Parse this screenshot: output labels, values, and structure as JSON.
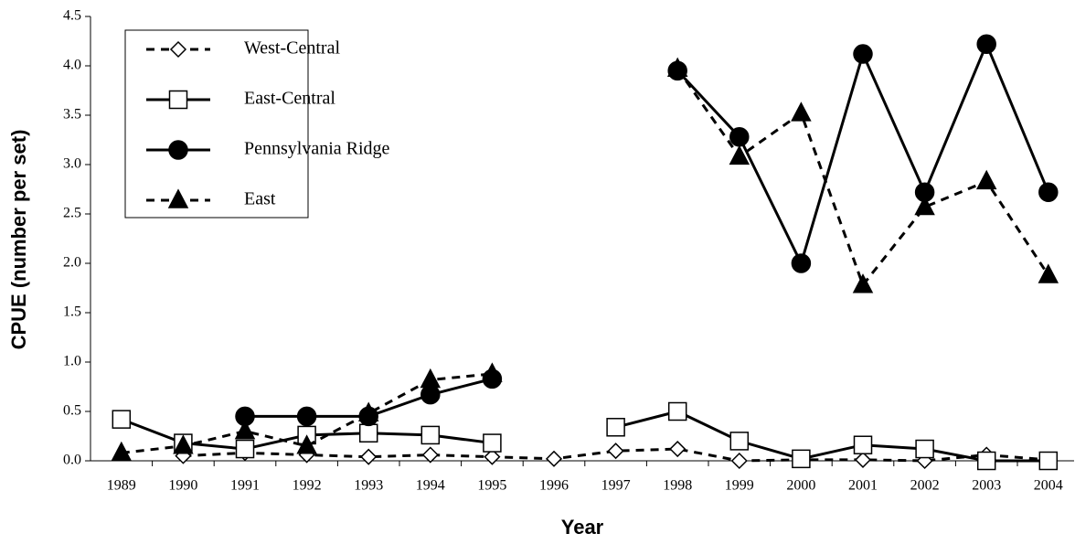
{
  "chart_data": {
    "type": "line",
    "x_label": "Year",
    "y_label": "CPUE (number per set)",
    "categories": [
      "1989",
      "1990",
      "1991",
      "1992",
      "1993",
      "1994",
      "1995",
      "1996",
      "1997",
      "1998",
      "1999",
      "2000",
      "2001",
      "2002",
      "2003",
      "2004"
    ],
    "ylim": [
      0,
      4.5
    ],
    "yticks": [
      {
        "value": 0,
        "label": "0.0"
      },
      0.5,
      {
        "value": 1,
        "label": "1.0"
      },
      1.5,
      {
        "value": 2,
        "label": "2.0"
      },
      2.5,
      {
        "value": 3,
        "label": "3.0"
      },
      3.5,
      {
        "value": 4,
        "label": "4.0"
      },
      4.5
    ],
    "series": [
      {
        "name": "West-Central",
        "color": "#000000",
        "dash": true,
        "marker": "diamond",
        "values": [
          null,
          0.05,
          0.08,
          0.06,
          0.04,
          0.06,
          0.04,
          0.02,
          0.1,
          0.12,
          0.0,
          0.01,
          0.01,
          0.0,
          0.06,
          0.01
        ]
      },
      {
        "name": "East-Central",
        "color": "#000000",
        "dash": false,
        "marker": "square",
        "values": [
          0.42,
          0.18,
          0.12,
          0.26,
          0.28,
          0.26,
          0.18,
          null,
          0.34,
          0.5,
          0.2,
          0.02,
          0.16,
          0.12,
          0.0,
          0.0
        ]
      },
      {
        "name": "Pennsylvania Ridge",
        "color": "#000000",
        "dash": false,
        "marker": "circle",
        "values": [
          null,
          null,
          0.45,
          0.45,
          0.45,
          0.67,
          0.83,
          null,
          null,
          3.95,
          3.28,
          2.0,
          4.12,
          2.72,
          4.22,
          2.72
        ]
      },
      {
        "name": "East",
        "color": "#000000",
        "dash": true,
        "marker": "triangle",
        "values": [
          0.08,
          0.15,
          0.3,
          0.15,
          0.48,
          0.82,
          0.88,
          null,
          null,
          3.97,
          3.08,
          3.52,
          1.78,
          2.57,
          2.83,
          1.88
        ]
      }
    ]
  }
}
